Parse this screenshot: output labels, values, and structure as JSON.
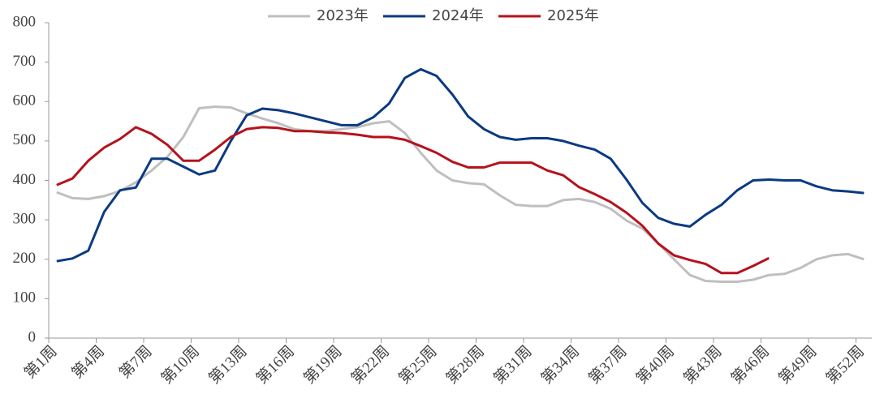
{
  "chart_data": {
    "type": "line",
    "categories": [
      "第1周",
      null,
      null,
      "第4周",
      null,
      null,
      "第7周",
      null,
      null,
      "第10周",
      null,
      null,
      "第13周",
      null,
      null,
      "第16周",
      null,
      null,
      "第19周",
      null,
      null,
      "第22周",
      null,
      null,
      "第25周",
      null,
      null,
      "第28周",
      null,
      null,
      "第31周",
      null,
      null,
      "第34周",
      null,
      null,
      "第37周",
      null,
      null,
      "第40周",
      null,
      null,
      "第43周",
      null,
      null,
      "第46周",
      null,
      null,
      "第49周",
      null,
      null,
      "第52周"
    ],
    "series": [
      {
        "name": "2023年",
        "color": "#bfbfbf",
        "values": [
          370,
          355,
          353,
          360,
          373,
          395,
          425,
          460,
          510,
          583,
          587,
          585,
          570,
          557,
          545,
          530,
          525,
          525,
          530,
          535,
          545,
          550,
          520,
          470,
          425,
          400,
          393,
          390,
          362,
          338,
          335,
          335,
          350,
          353,
          345,
          328,
          298,
          278,
          240,
          200,
          160,
          145,
          143,
          143,
          148,
          160,
          163,
          178,
          200,
          210,
          213,
          200
        ]
      },
      {
        "name": "2024年",
        "color": "#0b3a82",
        "values": [
          195,
          202,
          222,
          320,
          375,
          382,
          455,
          455,
          435,
          415,
          425,
          500,
          565,
          582,
          578,
          570,
          560,
          550,
          540,
          540,
          560,
          595,
          660,
          682,
          665,
          618,
          562,
          530,
          510,
          503,
          507,
          507,
          500,
          488,
          478,
          455,
          402,
          343,
          305,
          290,
          283,
          313,
          338,
          375,
          400,
          402,
          400,
          400,
          385,
          375,
          372,
          368
        ]
      },
      {
        "name": "2025年",
        "color": "#b5121b",
        "values": [
          388,
          405,
          450,
          483,
          505,
          535,
          518,
          490,
          450,
          450,
          478,
          510,
          530,
          535,
          533,
          525,
          525,
          522,
          520,
          516,
          510,
          510,
          503,
          487,
          470,
          447,
          433,
          433,
          445,
          445,
          445,
          425,
          413,
          383,
          365,
          345,
          318,
          285,
          240,
          210,
          198,
          188,
          165,
          165,
          183,
          203,
          null,
          null,
          null,
          null,
          null,
          null
        ]
      }
    ],
    "ylim": [
      0,
      800
    ],
    "yticks": [
      0,
      100,
      200,
      300,
      400,
      500,
      600,
      700,
      800
    ],
    "legend": "top"
  }
}
